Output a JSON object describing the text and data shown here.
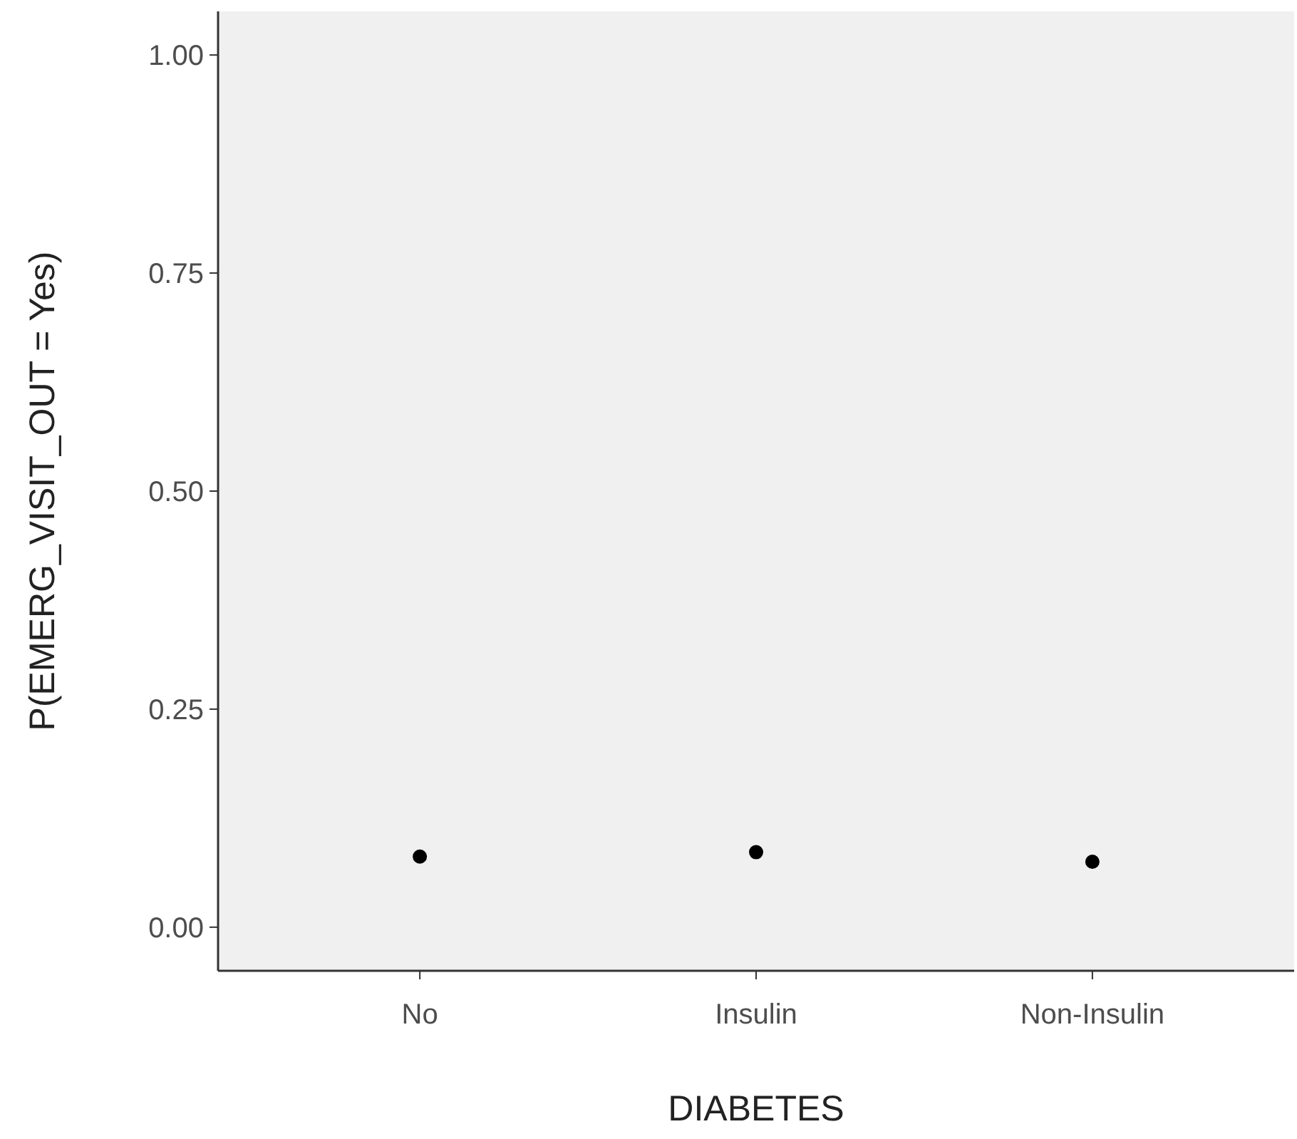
{
  "chart_data": {
    "type": "scatter",
    "xlabel": "DIABETES",
    "ylabel": "P(EMERG_VISIT_OUT = Yes)",
    "categories": [
      "No",
      "Insulin",
      "Non-Insulin"
    ],
    "series": [
      {
        "color": "#000000",
        "values": [
          0.081,
          0.086,
          0.075
        ]
      }
    ],
    "ylim": [
      -0.05,
      1.05
    ],
    "yticks": [
      {
        "value": 0,
        "label": "0.00"
      },
      {
        "value": 0.25,
        "label": "0.25"
      },
      {
        "value": 0.5,
        "label": "0.50"
      },
      {
        "value": 0.75,
        "label": "0.75"
      },
      {
        "value": 1,
        "label": "1.00"
      }
    ],
    "grid": false,
    "marker": "circle"
  }
}
